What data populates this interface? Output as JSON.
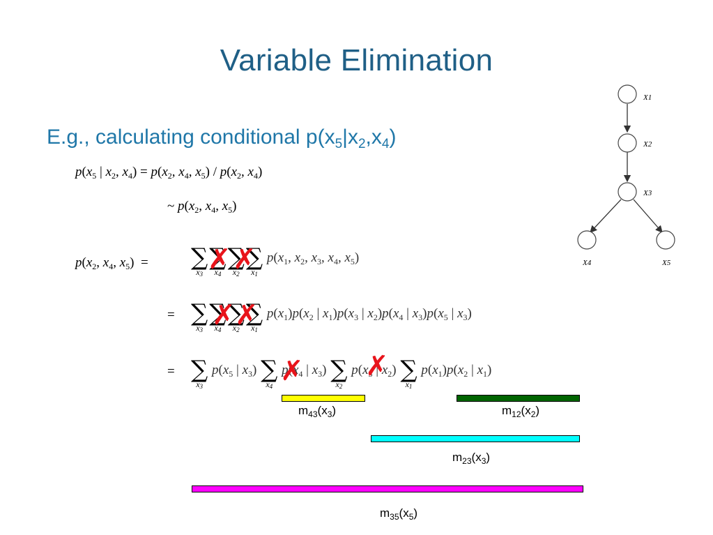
{
  "slide": {
    "title": "Variable Elimination",
    "subtitle_prefix": "E.g., calculating conditional p(x",
    "subtitle_sub5": "5",
    "subtitle_mid1": "|x",
    "subtitle_sub2": "2",
    "subtitle_mid2": ",x",
    "subtitle_sub4": "4",
    "subtitle_end": ")"
  },
  "equations": {
    "eq1": "p(x5 | x2, x4) = p(x2, x4, x5) / p(x2, x4)",
    "eq2": "~ p(x2, x4, x5)",
    "eq3_lhs": "p(x2, x4, x5)",
    "eq3_rhs": "p(x1, x2, x3, x4, x5)",
    "eq4_rhs": "p(x1)p(x2 | x1)p(x3 | x2)p(x4 | x3)p(x5 | x3)",
    "eq5_rhs": "p(x5 | x3) Σx4 p(x4 | x3) Σx2 p(x3 | x2) Σx1 p(x1)p(x2 | x1)"
  },
  "messages": [
    {
      "name": "m",
      "sub": "43",
      "arg": "x",
      "argsub": "3",
      "color": "#ffff00"
    },
    {
      "name": "m",
      "sub": "12",
      "arg": "x",
      "argsub": "2",
      "color": "#006400"
    },
    {
      "name": "m",
      "sub": "23",
      "arg": "x",
      "argsub": "3",
      "color": "#00ffff"
    },
    {
      "name": "m",
      "sub": "35",
      "arg": "x",
      "argsub": "5",
      "color": "#ff00ff"
    }
  ],
  "graph": {
    "nodes": [
      "X1",
      "X2",
      "X3",
      "X4",
      "X5"
    ]
  },
  "colors": {
    "title": "#1f5f86",
    "subtitle": "#1f77a8",
    "cross": "#e8141b"
  }
}
